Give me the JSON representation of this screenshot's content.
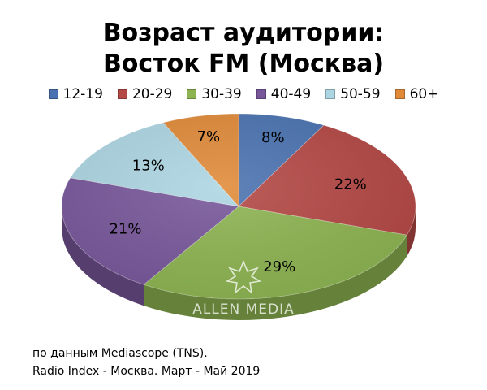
{
  "chart_data": {
    "type": "pie",
    "title_lines": [
      "Возраст аудитории:",
      "Восток FM (Москва)"
    ],
    "legend_position": "top",
    "slices": [
      {
        "label": "12-19",
        "value": 8,
        "value_label": "8%",
        "color": "#4a72b0"
      },
      {
        "label": "20-29",
        "value": 22,
        "value_label": "22%",
        "color": "#b44845"
      },
      {
        "label": "30-39",
        "value": 29,
        "value_label": "29%",
        "color": "#8db451"
      },
      {
        "label": "40-49",
        "value": 21,
        "value_label": "21%",
        "color": "#77579a"
      },
      {
        "label": "50-59",
        "value": 13,
        "value_label": "13%",
        "color": "#add6e3"
      },
      {
        "label": "60+",
        "value": 7,
        "value_label": "7%",
        "color": "#e08a38"
      }
    ]
  },
  "watermark": {
    "text": "ALLEN MEDIA",
    "icon": "star-burst-icon"
  },
  "source": {
    "line1": "по данным Mediascope (TNS).",
    "line2": "Radio Index - Москва. Март - Май 2019"
  }
}
